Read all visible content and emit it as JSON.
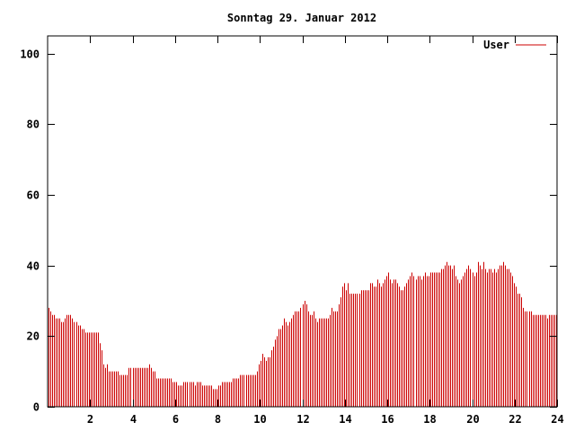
{
  "chart_data": {
    "type": "bar",
    "title": "Sonntag 29. Januar 2012",
    "xlabel": "",
    "ylabel": "",
    "xlim": [
      0,
      24
    ],
    "ylim": [
      0,
      105
    ],
    "xticks": [
      2,
      4,
      6,
      8,
      10,
      12,
      14,
      16,
      18,
      20,
      22,
      24
    ],
    "yticks": [
      0,
      20,
      40,
      60,
      80,
      100
    ],
    "grid": false,
    "legend": "top-right",
    "colors": {
      "series": "#cc0000",
      "axis": "#000000",
      "background": "#ffffff"
    },
    "series": [
      {
        "name": "User",
        "y": [
          28,
          27,
          26,
          26,
          25,
          25,
          25,
          24,
          24,
          25,
          26,
          26,
          26,
          25,
          24,
          24,
          23,
          23,
          22,
          22,
          21,
          21,
          21,
          21,
          21,
          21,
          21,
          21,
          18,
          16,
          12,
          11,
          12,
          10,
          10,
          10,
          10,
          10,
          10,
          9,
          9,
          9,
          9,
          9,
          11,
          11,
          11,
          11,
          11,
          11,
          11,
          11,
          11,
          11,
          11,
          12,
          11,
          10,
          10,
          8,
          8,
          8,
          8,
          8,
          8,
          8,
          8,
          8,
          7,
          7,
          7,
          6,
          6,
          6,
          7,
          7,
          7,
          7,
          7,
          7,
          6,
          7,
          7,
          7,
          6,
          6,
          6,
          6,
          6,
          6,
          5,
          5,
          5,
          6,
          6,
          7,
          7,
          7,
          7,
          7,
          7,
          8,
          8,
          8,
          8,
          9,
          9,
          9,
          9,
          9,
          9,
          9,
          9,
          9,
          10,
          12,
          13,
          15,
          14,
          13,
          14,
          14,
          16,
          17,
          19,
          20,
          22,
          22,
          23,
          25,
          24,
          23,
          24,
          25,
          26,
          27,
          27,
          27,
          28,
          29,
          30,
          29,
          27,
          26,
          26,
          27,
          25,
          24,
          25,
          25,
          25,
          25,
          25,
          25,
          26,
          28,
          27,
          27,
          27,
          29,
          31,
          34,
          35,
          33,
          35,
          32,
          32,
          32,
          32,
          32,
          32,
          33,
          33,
          33,
          33,
          33,
          35,
          35,
          34,
          34,
          36,
          35,
          34,
          35,
          36,
          37,
          38,
          36,
          35,
          36,
          36,
          35,
          34,
          33,
          33,
          34,
          35,
          36,
          37,
          38,
          37,
          36,
          37,
          37,
          36,
          37,
          38,
          37,
          37,
          38,
          38,
          38,
          38,
          38,
          38,
          39,
          39,
          40,
          41,
          40,
          40,
          39,
          40,
          37,
          36,
          35,
          36,
          37,
          38,
          39,
          40,
          39,
          38,
          37,
          38,
          41,
          40,
          39,
          41,
          39,
          38,
          39,
          39,
          38,
          39,
          38,
          39,
          40,
          40,
          41,
          40,
          39,
          39,
          38,
          37,
          35,
          34,
          32,
          32,
          31,
          28,
          27,
          27,
          27,
          27,
          26,
          26,
          26,
          26,
          26,
          26,
          26,
          26,
          25,
          26,
          26,
          26,
          26,
          26
        ]
      }
    ]
  }
}
